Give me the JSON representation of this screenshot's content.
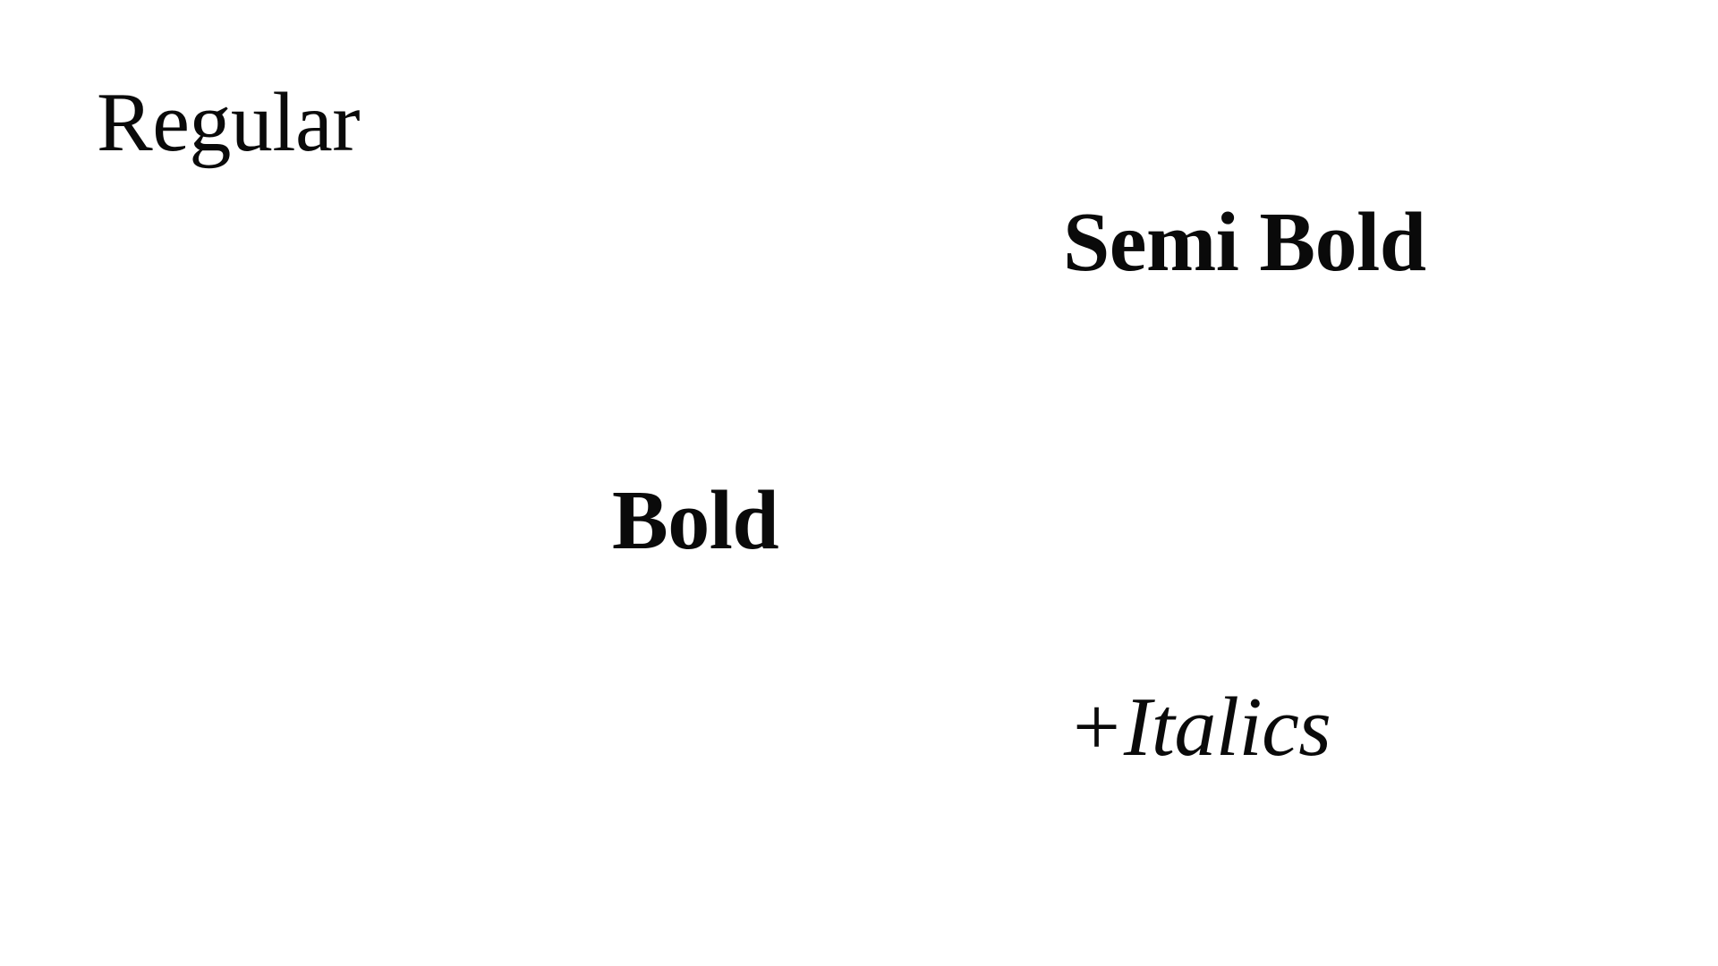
{
  "specimens": {
    "regular": "Regular",
    "semi_bold": "Semi Bold",
    "bold": "Bold",
    "italics": "+Italics"
  },
  "colors": {
    "background": "#ffffff",
    "text": "#0a0a0a"
  }
}
